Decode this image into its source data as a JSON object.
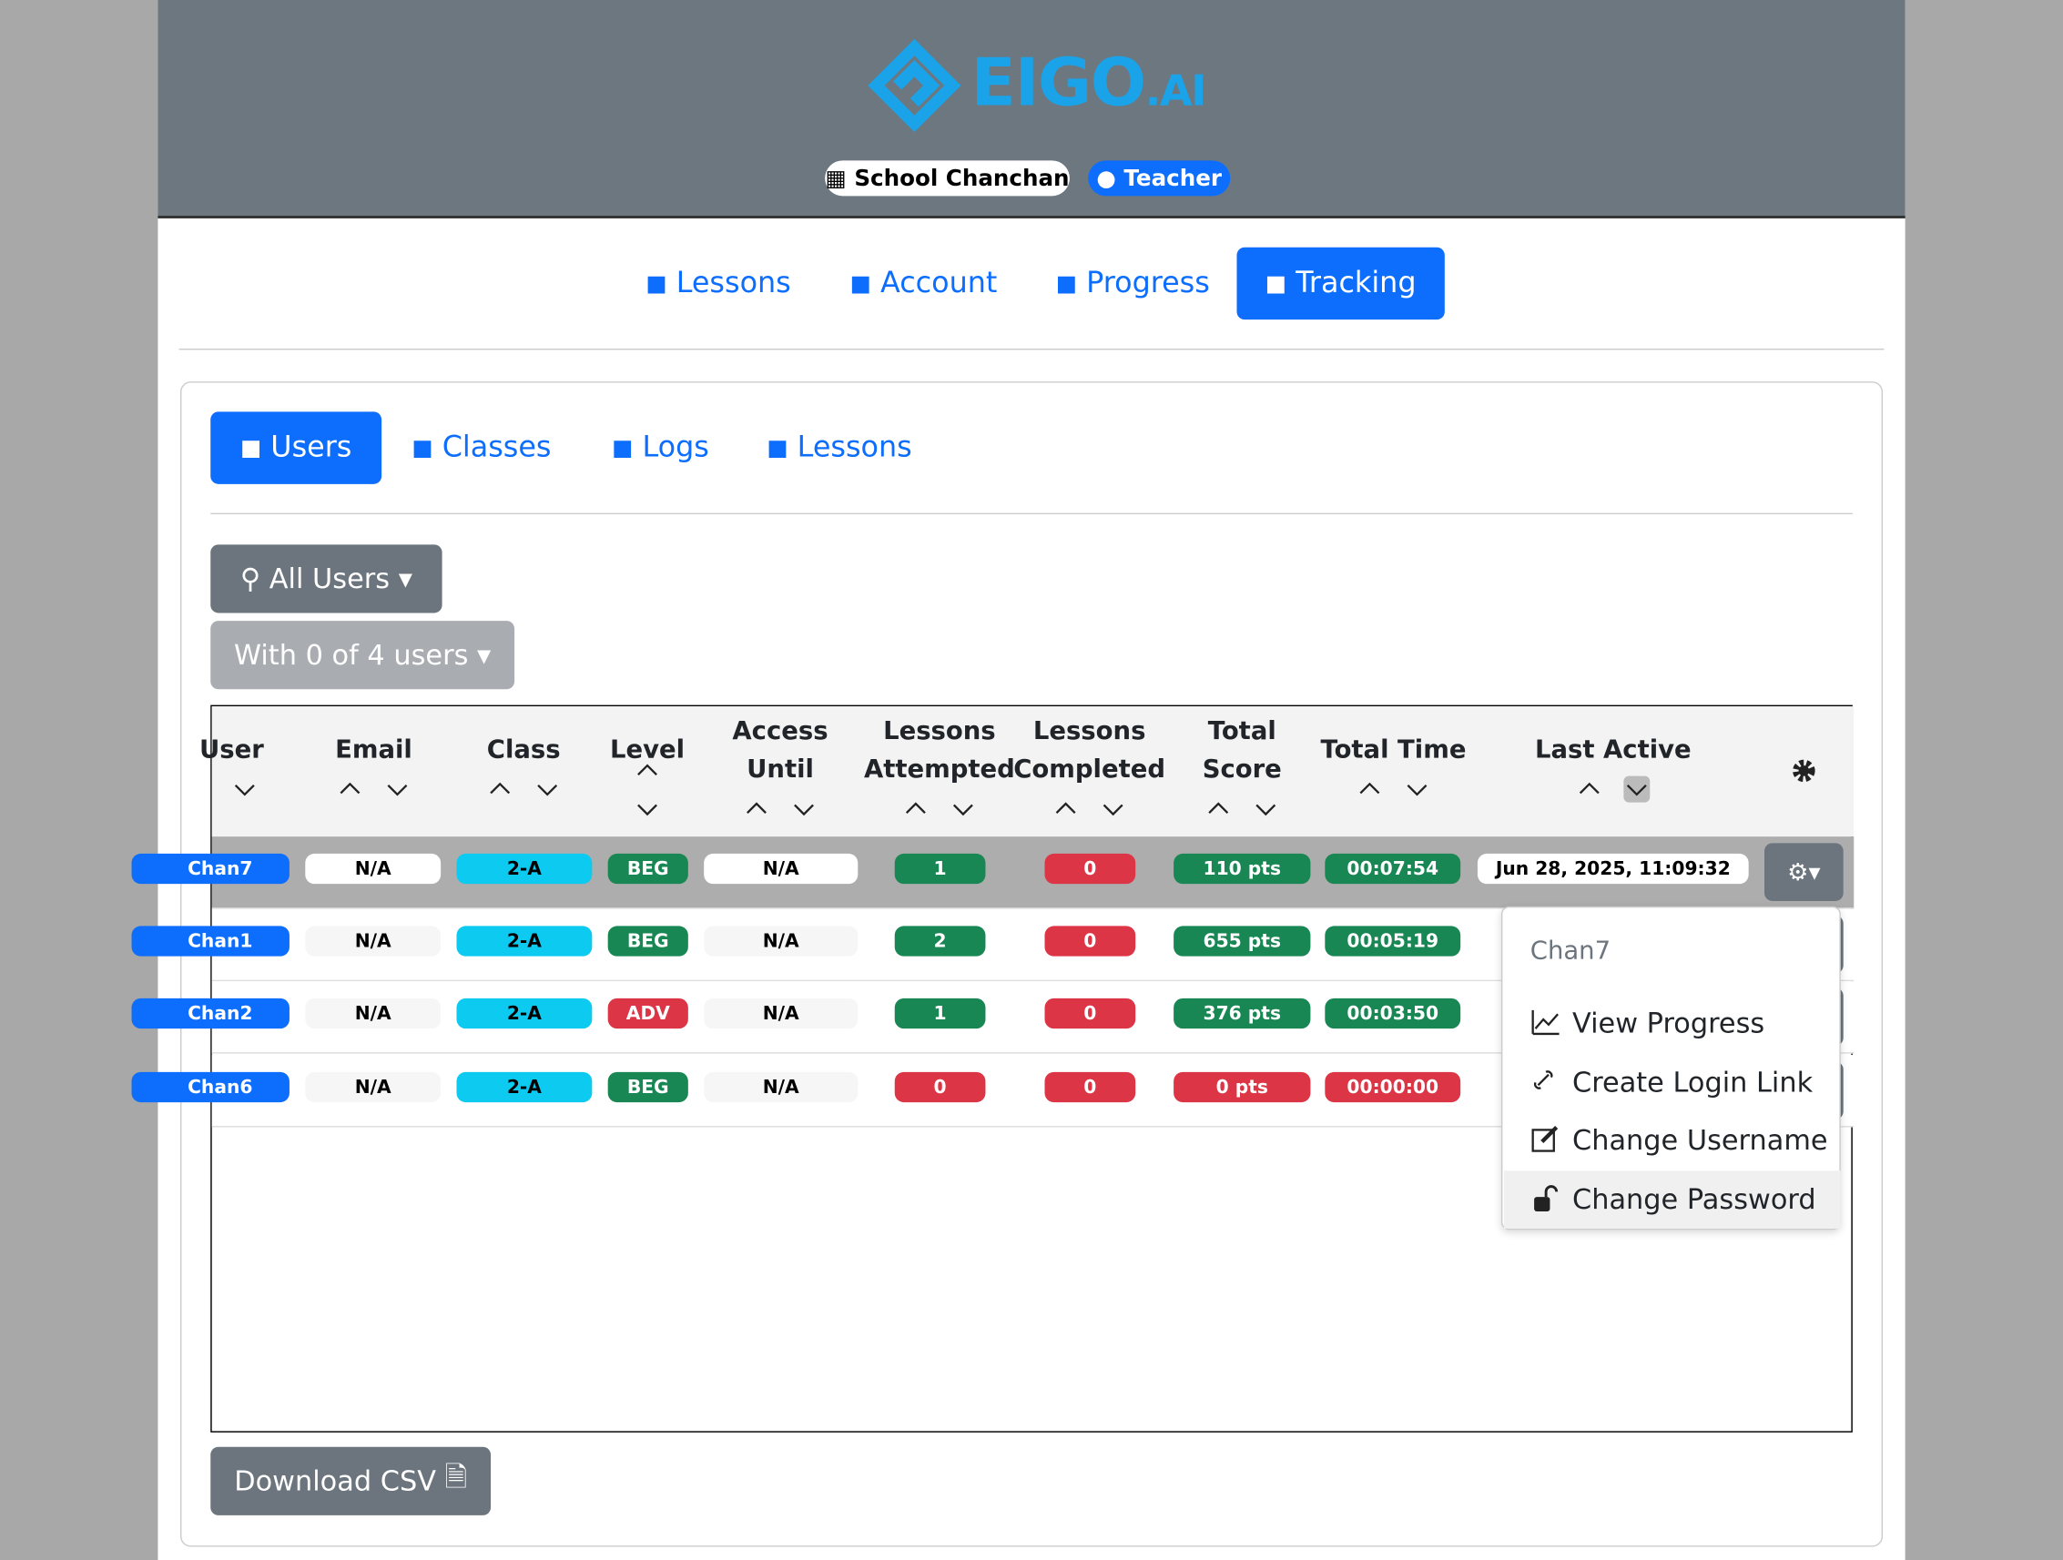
{
  "header": {
    "logo": {
      "name": "EIGO",
      "suffix": "AI"
    },
    "school": "School Chanchan",
    "role": "Teacher"
  },
  "nav": {
    "items": [
      "Lessons",
      "Account",
      "Progress",
      "Tracking"
    ],
    "active": 3
  },
  "subnav": {
    "items": [
      "Users",
      "Classes",
      "Logs",
      "Lessons"
    ],
    "active": 0
  },
  "filters": {
    "group": "All Users",
    "selection": "With 0 of 4 users"
  },
  "table": {
    "columns": [
      [
        "User"
      ],
      [
        "Email"
      ],
      [
        "Class"
      ],
      [
        "Level"
      ],
      [
        "Access",
        "Until"
      ],
      [
        "Lessons",
        "Attempted"
      ],
      [
        "Lessons",
        "Completed"
      ],
      [
        "Total",
        "Score"
      ],
      [
        "Total Time"
      ],
      [
        "Last Active"
      ]
    ],
    "level_colors": {
      "BEG": "#198754",
      "ADV": "#dc3545"
    },
    "rows": [
      {
        "user": "Chan7",
        "email": "N/A",
        "class": "2-A",
        "level": "BEG",
        "access": "N/A",
        "attempted": 1,
        "completed": 0,
        "score": "110 pts",
        "time": "00:07:54",
        "last_active": "Jun 28, 2025, 11:09:32"
      },
      {
        "user": "Chan1",
        "email": "N/A",
        "class": "2-A",
        "level": "BEG",
        "access": "N/A",
        "attempted": 2,
        "completed": 0,
        "score": "655 pts",
        "time": "00:05:19"
      },
      {
        "user": "Chan2",
        "email": "N/A",
        "class": "2-A",
        "level": "ADV",
        "access": "N/A",
        "attempted": 1,
        "completed": 0,
        "score": "376 pts",
        "time": "00:03:50"
      },
      {
        "user": "Chan6",
        "email": "N/A",
        "class": "2-A",
        "level": "BEG",
        "access": "N/A",
        "attempted": 0,
        "completed": 0,
        "score": "0 pts",
        "time": "00:00:00"
      }
    ]
  },
  "menu": {
    "header": "Chan7",
    "items": [
      "View Progress",
      "Create Login Link",
      "Change Username",
      "Change Password"
    ]
  },
  "download": "Download CSV"
}
